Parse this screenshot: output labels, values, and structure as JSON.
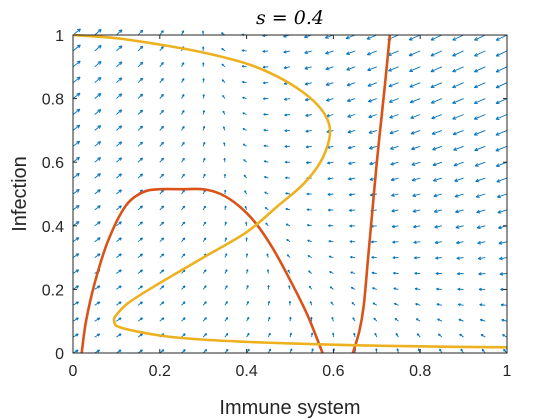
{
  "chart_data": {
    "type": "line",
    "title": "s = 0.4",
    "xlabel": "Immune system",
    "ylabel": "Infection",
    "xlim": [
      0,
      1
    ],
    "ylim": [
      0,
      1
    ],
    "xticks": [
      "0",
      "0.2",
      "0.4",
      "0.6",
      "0.8",
      "1"
    ],
    "yticks": [
      "0",
      "0.2",
      "0.4",
      "0.6",
      "0.8",
      "1"
    ],
    "grid": false,
    "colors": {
      "axis": "#262626",
      "quiver": "#0072BD",
      "orange_series": "#D95319",
      "yellow_series": "#EDB120"
    },
    "series": [
      {
        "color": "#D95319",
        "points": [
          [
            0.02,
            0.0
          ],
          [
            0.03,
            0.1
          ],
          [
            0.05,
            0.22
          ],
          [
            0.08,
            0.35
          ],
          [
            0.12,
            0.46
          ],
          [
            0.16,
            0.505
          ],
          [
            0.2,
            0.515
          ],
          [
            0.25,
            0.515
          ],
          [
            0.3,
            0.515
          ],
          [
            0.34,
            0.5
          ],
          [
            0.38,
            0.465
          ],
          [
            0.42,
            0.41
          ],
          [
            0.46,
            0.33
          ],
          [
            0.5,
            0.23
          ],
          [
            0.54,
            0.12
          ],
          [
            0.575,
            0.0
          ]
        ]
      },
      {
        "color": "#D95319",
        "points": [
          [
            0.645,
            0.0
          ],
          [
            0.66,
            0.07
          ],
          [
            0.67,
            0.15
          ],
          [
            0.68,
            0.3
          ],
          [
            0.69,
            0.45
          ],
          [
            0.7,
            0.6
          ],
          [
            0.71,
            0.73
          ],
          [
            0.72,
            0.86
          ],
          [
            0.73,
            1.0
          ]
        ]
      },
      {
        "color": "#EDB120",
        "points": [
          [
            0.0,
            1.0
          ],
          [
            0.1,
            0.99
          ],
          [
            0.2,
            0.97
          ],
          [
            0.3,
            0.945
          ],
          [
            0.4,
            0.91
          ],
          [
            0.47,
            0.87
          ],
          [
            0.53,
            0.82
          ],
          [
            0.57,
            0.77
          ],
          [
            0.59,
            0.72
          ],
          [
            0.59,
            0.67
          ],
          [
            0.57,
            0.6
          ],
          [
            0.53,
            0.53
          ],
          [
            0.47,
            0.46
          ],
          [
            0.4,
            0.38
          ],
          [
            0.3,
            0.3
          ],
          [
            0.2,
            0.22
          ],
          [
            0.13,
            0.16
          ],
          [
            0.1,
            0.12
          ],
          [
            0.095,
            0.1
          ],
          [
            0.11,
            0.08
          ],
          [
            0.2,
            0.055
          ],
          [
            0.3,
            0.042
          ],
          [
            0.4,
            0.035
          ],
          [
            0.5,
            0.03
          ],
          [
            0.6,
            0.026
          ],
          [
            0.7,
            0.023
          ],
          [
            0.8,
            0.021
          ],
          [
            0.9,
            0.019
          ],
          [
            1.0,
            0.018
          ]
        ]
      }
    ]
  }
}
